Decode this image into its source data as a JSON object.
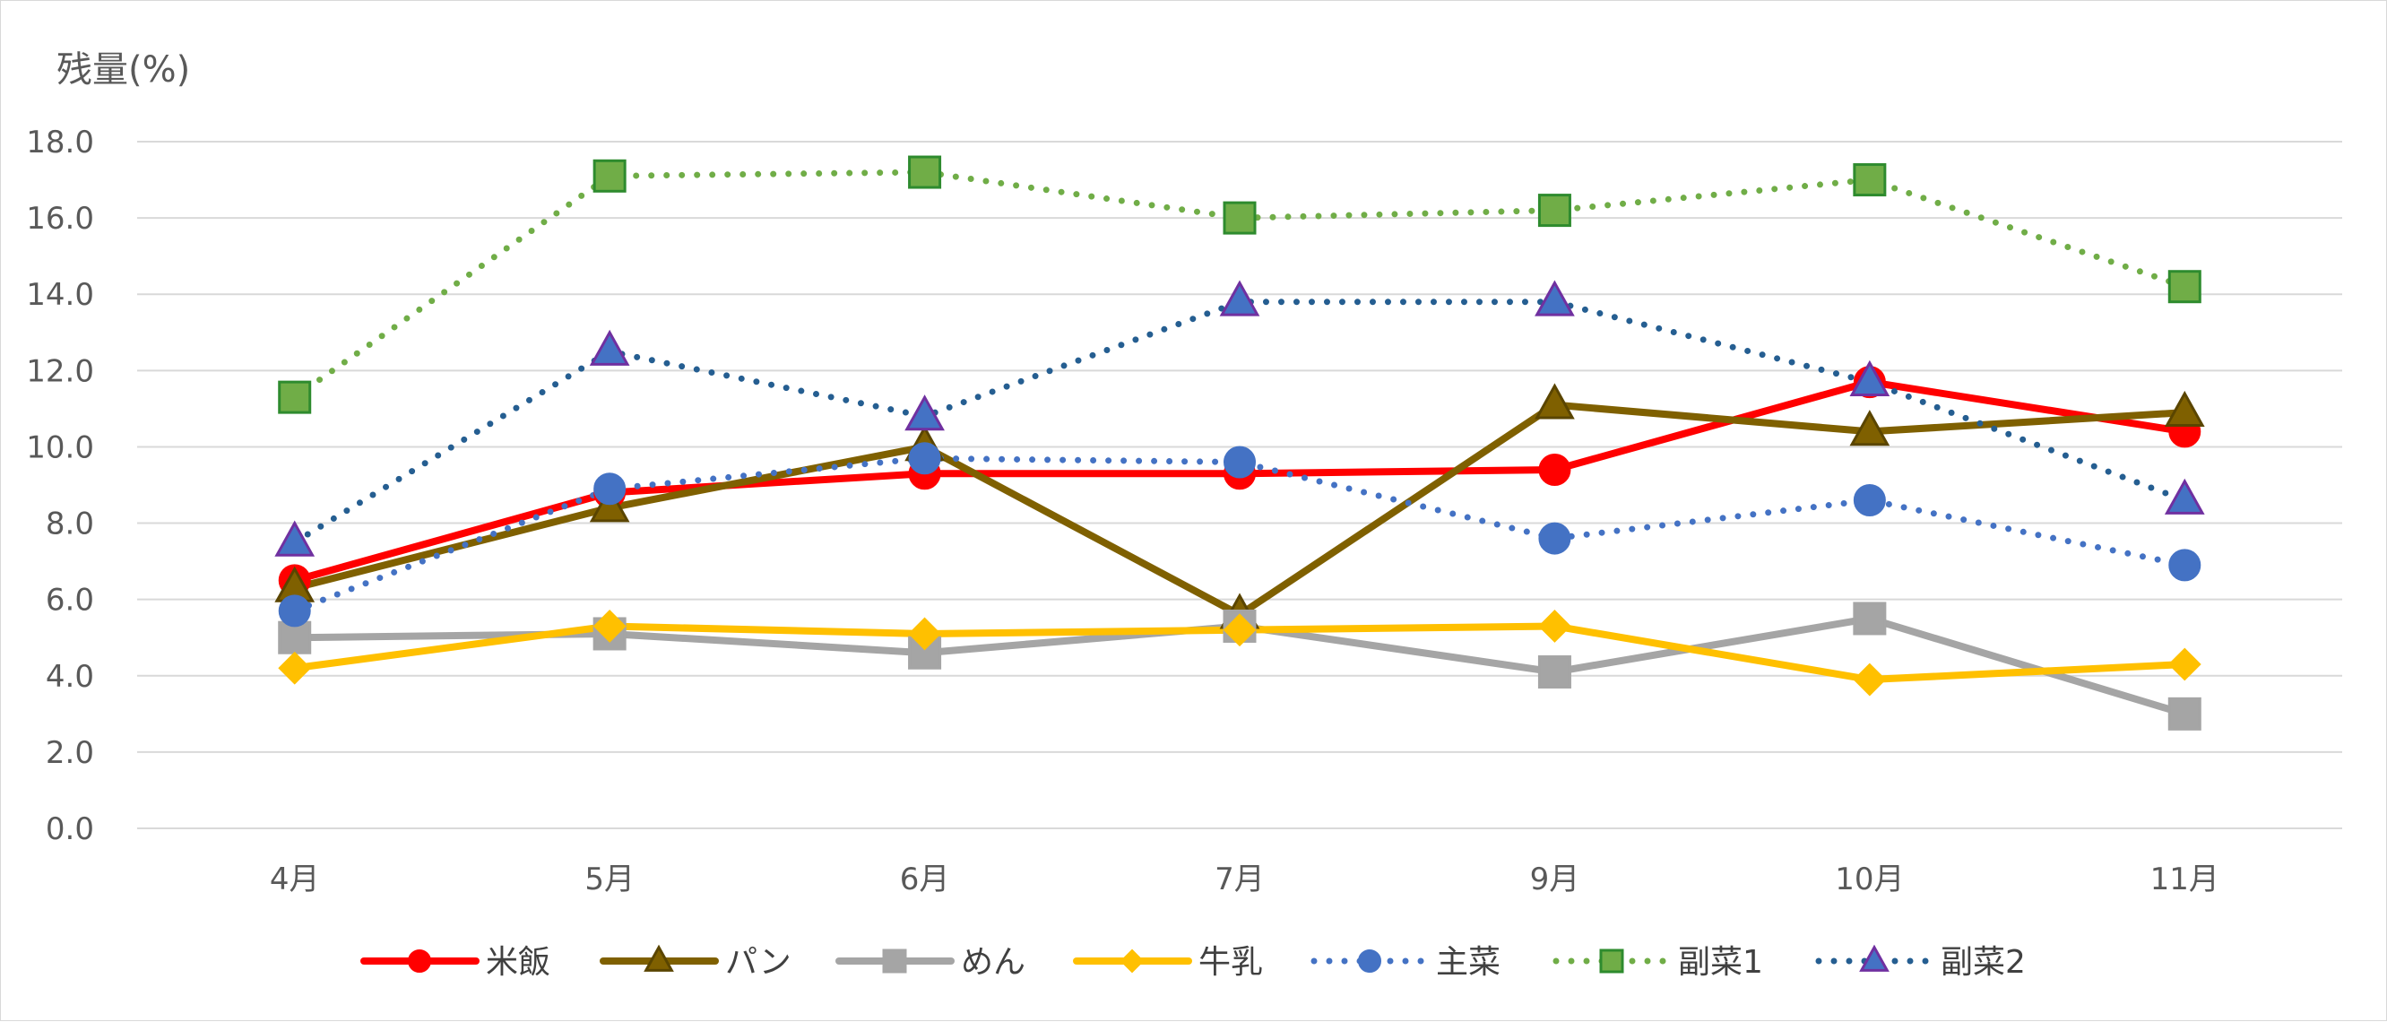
{
  "chart_data": {
    "type": "line",
    "title": "",
    "ylabel": "残量(%)",
    "xlabel": "",
    "categories": [
      "4月",
      "5月",
      "6月",
      "7月",
      "9月",
      "10月",
      "11月"
    ],
    "ylim": [
      0,
      18
    ],
    "yticks": [
      "0.0",
      "2.0",
      "4.0",
      "6.0",
      "8.0",
      "10.0",
      "12.0",
      "14.0",
      "16.0",
      "18.0"
    ],
    "grid": true,
    "legend_position": "bottom",
    "series": [
      {
        "name": "米飯",
        "values": [
          6.5,
          8.8,
          9.3,
          9.3,
          9.4,
          11.7,
          10.4
        ],
        "color": "#ff0000",
        "line": "solid",
        "marker": "circle",
        "marker_fill": "#ff0000",
        "marker_stroke": "#ff0000"
      },
      {
        "name": "パン",
        "values": [
          6.3,
          8.4,
          10.0,
          5.6,
          11.1,
          10.4,
          10.9
        ],
        "color": "#7f6000",
        "line": "solid",
        "marker": "triangle",
        "marker_fill": "#7f6000",
        "marker_stroke": "#5a4500"
      },
      {
        "name": "めん",
        "values": [
          5.0,
          5.1,
          4.6,
          5.3,
          4.1,
          5.5,
          3.0
        ],
        "color": "#a5a5a5",
        "line": "solid",
        "marker": "square",
        "marker_fill": "#a5a5a5",
        "marker_stroke": "#a5a5a5"
      },
      {
        "name": "牛乳",
        "values": [
          4.2,
          5.3,
          5.1,
          5.2,
          5.3,
          3.9,
          4.3
        ],
        "color": "#ffc000",
        "line": "solid",
        "marker": "diamond",
        "marker_fill": "#ffc000",
        "marker_stroke": "#ffc000"
      },
      {
        "name": "主菜",
        "values": [
          5.7,
          8.9,
          9.7,
          9.6,
          7.6,
          8.6,
          6.9
        ],
        "color": "#4472c4",
        "line": "dotted",
        "marker": "circle",
        "marker_fill": "#4472c4",
        "marker_stroke": "#4472c4"
      },
      {
        "name": "副菜1",
        "values": [
          11.3,
          17.1,
          17.2,
          16.0,
          16.2,
          17.0,
          14.2
        ],
        "color": "#70ad47",
        "line": "dotted",
        "marker": "square",
        "marker_fill": "#70ad47",
        "marker_stroke": "#2e8b2e"
      },
      {
        "name": "副菜2",
        "values": [
          7.5,
          12.5,
          10.8,
          13.8,
          13.8,
          11.7,
          8.6
        ],
        "color": "#255e91",
        "line": "dotted",
        "marker": "triangle",
        "marker_fill": "#4472c4",
        "marker_stroke": "#7030a0"
      }
    ]
  }
}
